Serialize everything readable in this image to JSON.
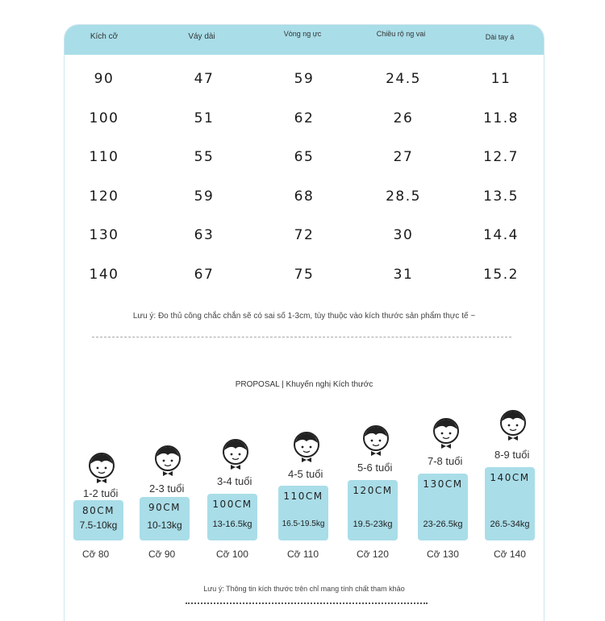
{
  "table": {
    "headers": [
      "Kích cỡ",
      "Váy dài",
      "Vòng ng ực",
      "Chiều rộ ng vai",
      "Dài tay á"
    ],
    "rows": [
      [
        "90",
        "47",
        "59",
        "24.5",
        "11"
      ],
      [
        "100",
        "51",
        "62",
        "26",
        "11.8"
      ],
      [
        "110",
        "55",
        "65",
        "27",
        "12.7"
      ],
      [
        "120",
        "59",
        "68",
        "28.5",
        "13.5"
      ],
      [
        "130",
        "63",
        "72",
        "30",
        "14.4"
      ],
      [
        "140",
        "67",
        "75",
        "31",
        "15.2"
      ]
    ],
    "note": "Lưu ý: Đo thủ công chắc chắn sẽ có sai số 1-3cm, tùy thuộc vào kích thước sản phẩm thực tế ~"
  },
  "proposal": {
    "title": "PROPOSAL | Khuyến nghị Kích thước",
    "children": [
      {
        "age": "1-2 tuổi",
        "height": "80CM",
        "weight": "7.5-10kg",
        "size": "Cỡ 80"
      },
      {
        "age": "2-3 tuổi",
        "height": "90CM",
        "weight": "10-13kg",
        "size": "Cỡ 90"
      },
      {
        "age": "3-4 tuổi",
        "height": "100CM",
        "weight": "13-16.5kg",
        "size": "Cỡ 100"
      },
      {
        "age": "4-5 tuổi",
        "height": "110CM",
        "weight": "16.5-19.5kg",
        "size": "Cỡ 110"
      },
      {
        "age": "5-6 tuổi",
        "height": "120CM",
        "weight": "19.5-23kg",
        "size": "Cỡ 120"
      },
      {
        "age": "7-8 tuổi",
        "height": "130CM",
        "weight": "23-26.5kg",
        "size": "Cỡ 130"
      },
      {
        "age": "8-9 tuổi",
        "height": "140CM",
        "weight": "26.5-34kg",
        "size": "Cỡ 140"
      }
    ],
    "note": "Lưu ý: Thông tin kích thước trên chỉ mang tính chất tham khảo"
  },
  "colors": {
    "accent": "#a9dde8",
    "border": "#cfe7ee"
  },
  "icons": [
    "child-face-icon"
  ]
}
